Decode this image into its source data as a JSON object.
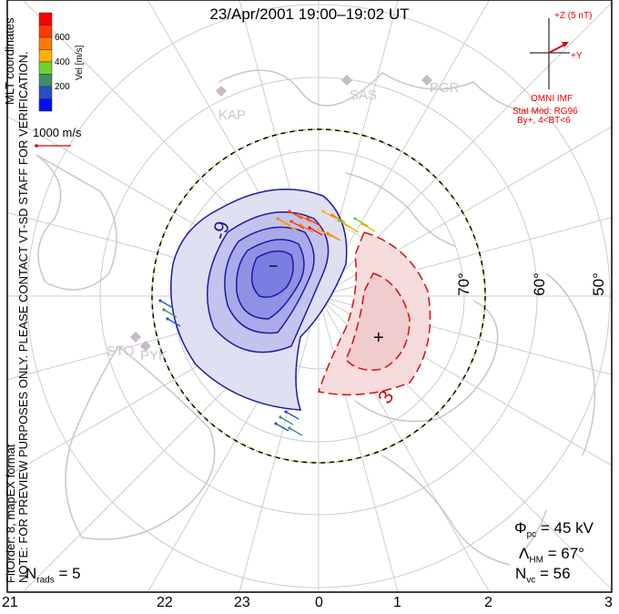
{
  "title": "23/Apr/2001 19:00–19:02 UT",
  "side_note": "NOTE: FOR PREVIEW PURPOSES ONLY. PLEASE CONTACT VT-SD STAFF FOR VERIFICATION.",
  "side_note2": "FitOrder: 8, mapEX format",
  "coords": "MLT coordinates",
  "colorbar": {
    "label": "Vel [m/s]",
    "ticks": [
      "600",
      "400",
      "200"
    ],
    "colors": [
      "#ff0000",
      "#ff3a00",
      "#ff7a00",
      "#ffb000",
      "#6ad42a",
      "#3f8f6a",
      "#2a4fc8",
      "#0010ff"
    ]
  },
  "scale_vector": "1000 m/s",
  "imf": {
    "z_label": "+Z (5 nT)",
    "y_label": "+Y",
    "source": "OMNI IMF",
    "model": "Stat Mod: RG96",
    "condition": "By+, 4<BT<6"
  },
  "stations": [
    "KAP",
    "SAS",
    "PGR",
    "STO",
    "PYK"
  ],
  "lat_labels": [
    "70°",
    "60°",
    "50°"
  ],
  "contour_labels": [
    "-9",
    "3"
  ],
  "stats": {
    "phi_sym": "Φ",
    "phi_sub": "pc",
    "phi_val": "= 45 kV",
    "lam_sym": "Λ",
    "lam_sub": "HM",
    "lam_val": "= 67°",
    "nvc_sym": "N",
    "nvc_sub": "vc",
    "nvc_val": "= 56",
    "nrads_sym": "N",
    "nrads_sub": "rads",
    "nrads_val": "= 5"
  },
  "mlt_ticks": [
    "21",
    "22",
    "23",
    "0",
    "1",
    "2",
    "3"
  ]
}
